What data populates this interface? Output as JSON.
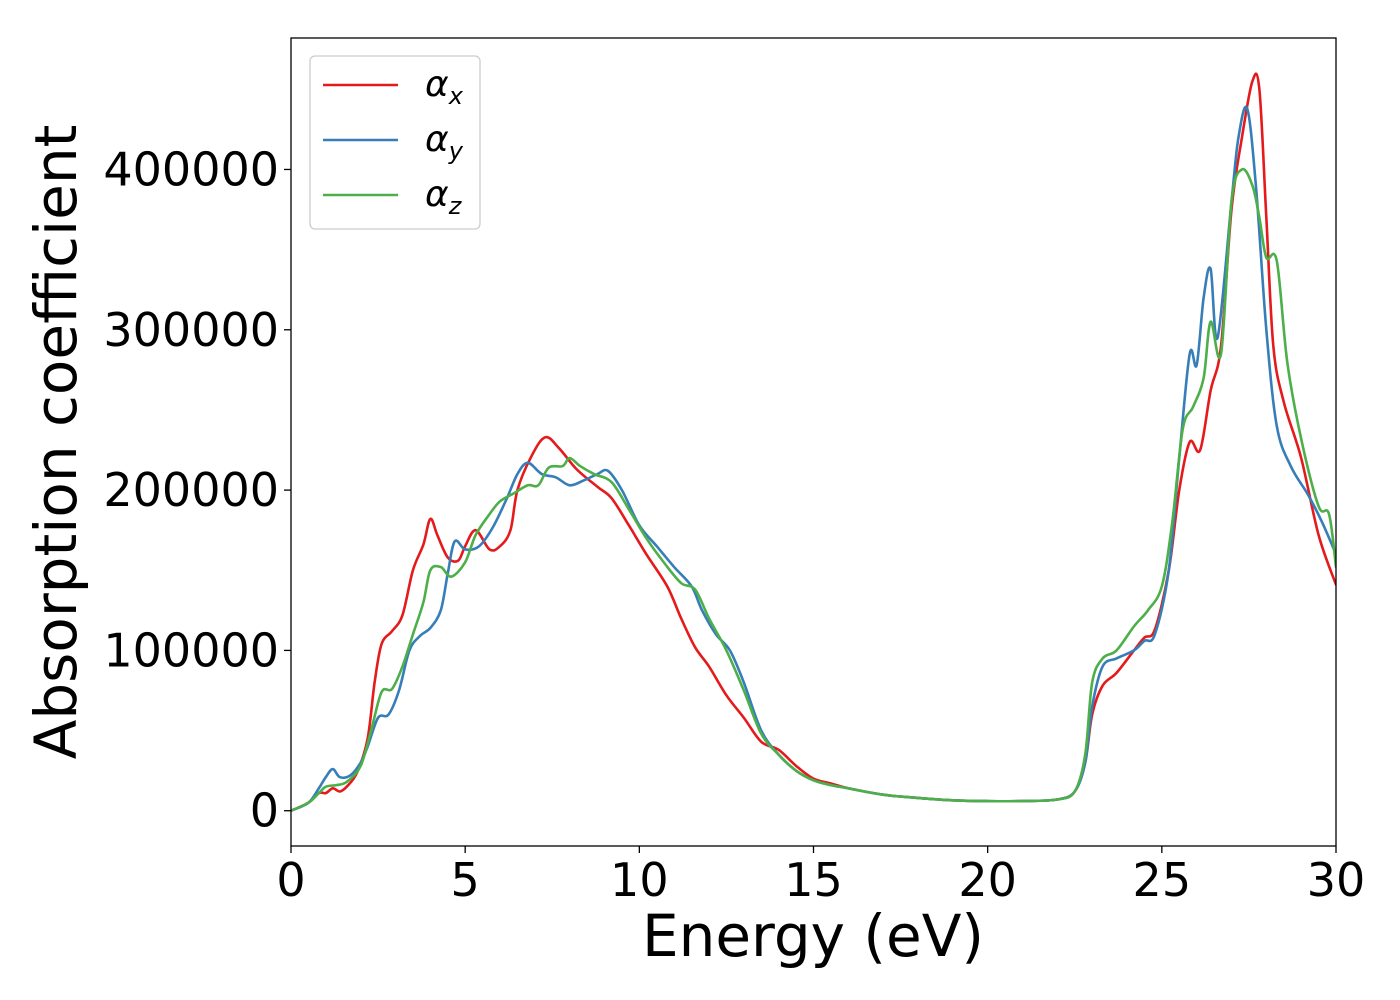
{
  "chart_data": {
    "type": "line",
    "title": "",
    "xlabel": "Energy (eV)",
    "ylabel": "Absorption coefficient",
    "xlim": [
      0,
      30
    ],
    "ylim": [
      -22000,
      482000
    ],
    "xticks": [
      0,
      5,
      10,
      15,
      20,
      25,
      30
    ],
    "yticks": [
      0,
      100000,
      200000,
      300000,
      400000
    ],
    "xtick_labels": [
      "0",
      "5",
      "10",
      "15",
      "20",
      "25",
      "30"
    ],
    "ytick_labels": [
      "0",
      "100000",
      "200000",
      "300000",
      "400000"
    ],
    "grid": false,
    "legend_position": "top-left",
    "series": [
      {
        "name": "αx",
        "symbol": "α",
        "subscript": "x",
        "color": "#e41a1c",
        "points": [
          [
            0,
            0
          ],
          [
            0.5,
            5000
          ],
          [
            0.8,
            11000
          ],
          [
            1.0,
            11000
          ],
          [
            1.2,
            14000
          ],
          [
            1.4,
            12000
          ],
          [
            1.6,
            15000
          ],
          [
            1.9,
            24000
          ],
          [
            2.2,
            45000
          ],
          [
            2.4,
            80000
          ],
          [
            2.6,
            104000
          ],
          [
            2.9,
            112000
          ],
          [
            3.2,
            122000
          ],
          [
            3.5,
            150000
          ],
          [
            3.8,
            166000
          ],
          [
            4.0,
            182000
          ],
          [
            4.2,
            172000
          ],
          [
            4.5,
            158000
          ],
          [
            4.8,
            156000
          ],
          [
            5.0,
            165000
          ],
          [
            5.3,
            175000
          ],
          [
            5.7,
            163000
          ],
          [
            6.0,
            165000
          ],
          [
            6.3,
            175000
          ],
          [
            6.5,
            200000
          ],
          [
            6.9,
            221000
          ],
          [
            7.3,
            233000
          ],
          [
            7.7,
            226000
          ],
          [
            8.2,
            213000
          ],
          [
            8.8,
            202000
          ],
          [
            9.2,
            195000
          ],
          [
            9.7,
            178000
          ],
          [
            10.2,
            160000
          ],
          [
            10.8,
            140000
          ],
          [
            11.2,
            120000
          ],
          [
            11.6,
            102000
          ],
          [
            12.0,
            90000
          ],
          [
            12.5,
            72000
          ],
          [
            13.0,
            58000
          ],
          [
            13.5,
            43000
          ],
          [
            14.0,
            38000
          ],
          [
            14.5,
            28000
          ],
          [
            15.0,
            20000
          ],
          [
            15.5,
            17000
          ],
          [
            16.0,
            14000
          ],
          [
            17.0,
            10000
          ],
          [
            18.0,
            8000
          ],
          [
            19.0,
            6500
          ],
          [
            20.0,
            6000
          ],
          [
            21.0,
            6000
          ],
          [
            22.0,
            7000
          ],
          [
            22.5,
            12000
          ],
          [
            22.8,
            30000
          ],
          [
            23.0,
            60000
          ],
          [
            23.3,
            78000
          ],
          [
            23.7,
            86000
          ],
          [
            24.2,
            100000
          ],
          [
            24.5,
            108000
          ],
          [
            24.8,
            113000
          ],
          [
            25.2,
            150000
          ],
          [
            25.5,
            200000
          ],
          [
            25.8,
            230000
          ],
          [
            26.1,
            225000
          ],
          [
            26.4,
            262000
          ],
          [
            26.7,
            290000
          ],
          [
            27.0,
            375000
          ],
          [
            27.3,
            420000
          ],
          [
            27.6,
            455000
          ],
          [
            27.8,
            450000
          ],
          [
            28.0,
            370000
          ],
          [
            28.2,
            290000
          ],
          [
            28.5,
            255000
          ],
          [
            29.0,
            220000
          ],
          [
            29.5,
            172000
          ],
          [
            30.0,
            141000
          ]
        ]
      },
      {
        "name": "αy",
        "symbol": "α",
        "subscript": "y",
        "color": "#377eb8",
        "points": [
          [
            0,
            0
          ],
          [
            0.5,
            5000
          ],
          [
            0.8,
            14000
          ],
          [
            1.0,
            21000
          ],
          [
            1.2,
            26000
          ],
          [
            1.4,
            21000
          ],
          [
            1.7,
            22000
          ],
          [
            2.0,
            30000
          ],
          [
            2.2,
            40000
          ],
          [
            2.5,
            58000
          ],
          [
            2.8,
            60000
          ],
          [
            3.1,
            75000
          ],
          [
            3.4,
            100000
          ],
          [
            3.7,
            109000
          ],
          [
            4.0,
            114000
          ],
          [
            4.3,
            125000
          ],
          [
            4.5,
            148000
          ],
          [
            4.7,
            168000
          ],
          [
            5.0,
            163000
          ],
          [
            5.4,
            165000
          ],
          [
            5.8,
            177000
          ],
          [
            6.2,
            195000
          ],
          [
            6.5,
            210000
          ],
          [
            6.8,
            217000
          ],
          [
            7.2,
            210000
          ],
          [
            7.6,
            208000
          ],
          [
            8.0,
            203000
          ],
          [
            8.4,
            206000
          ],
          [
            8.8,
            210000
          ],
          [
            9.1,
            212000
          ],
          [
            9.5,
            200000
          ],
          [
            10.0,
            178000
          ],
          [
            10.5,
            165000
          ],
          [
            11.0,
            152000
          ],
          [
            11.5,
            140000
          ],
          [
            11.8,
            125000
          ],
          [
            12.2,
            110000
          ],
          [
            12.6,
            100000
          ],
          [
            13.0,
            80000
          ],
          [
            13.5,
            50000
          ],
          [
            14.0,
            35000
          ],
          [
            14.5,
            25000
          ],
          [
            15.0,
            19000
          ],
          [
            15.5,
            16000
          ],
          [
            16.0,
            14000
          ],
          [
            17.0,
            10000
          ],
          [
            18.0,
            8000
          ],
          [
            19.0,
            6500
          ],
          [
            20.0,
            6000
          ],
          [
            21.0,
            6000
          ],
          [
            22.0,
            7000
          ],
          [
            22.5,
            12000
          ],
          [
            22.8,
            30000
          ],
          [
            23.0,
            65000
          ],
          [
            23.3,
            90000
          ],
          [
            23.7,
            95000
          ],
          [
            24.2,
            100000
          ],
          [
            24.5,
            106000
          ],
          [
            24.8,
            110000
          ],
          [
            25.2,
            150000
          ],
          [
            25.5,
            220000
          ],
          [
            25.8,
            285000
          ],
          [
            26.0,
            278000
          ],
          [
            26.2,
            320000
          ],
          [
            26.4,
            338000
          ],
          [
            26.6,
            295000
          ],
          [
            27.0,
            380000
          ],
          [
            27.2,
            420000
          ],
          [
            27.45,
            438000
          ],
          [
            27.7,
            390000
          ],
          [
            28.0,
            300000
          ],
          [
            28.3,
            240000
          ],
          [
            28.7,
            215000
          ],
          [
            29.2,
            197000
          ],
          [
            29.6,
            180000
          ],
          [
            30.0,
            160000
          ]
        ]
      },
      {
        "name": "αz",
        "symbol": "α",
        "subscript": "z",
        "color": "#4daf4a",
        "points": [
          [
            0,
            0
          ],
          [
            0.5,
            5000
          ],
          [
            0.8,
            11000
          ],
          [
            1.0,
            15000
          ],
          [
            1.3,
            16000
          ],
          [
            1.6,
            18000
          ],
          [
            2.0,
            28000
          ],
          [
            2.3,
            50000
          ],
          [
            2.6,
            74000
          ],
          [
            2.9,
            76000
          ],
          [
            3.2,
            90000
          ],
          [
            3.5,
            110000
          ],
          [
            3.8,
            130000
          ],
          [
            4.0,
            150000
          ],
          [
            4.3,
            152000
          ],
          [
            4.6,
            146000
          ],
          [
            5.0,
            155000
          ],
          [
            5.3,
            172000
          ],
          [
            5.7,
            185000
          ],
          [
            6.0,
            193000
          ],
          [
            6.4,
            198000
          ],
          [
            6.8,
            203000
          ],
          [
            7.1,
            203000
          ],
          [
            7.4,
            214000
          ],
          [
            7.8,
            215000
          ],
          [
            8.0,
            220000
          ],
          [
            8.3,
            215000
          ],
          [
            8.7,
            210000
          ],
          [
            9.2,
            205000
          ],
          [
            9.7,
            188000
          ],
          [
            10.2,
            170000
          ],
          [
            10.7,
            155000
          ],
          [
            11.2,
            142000
          ],
          [
            11.6,
            138000
          ],
          [
            12.0,
            120000
          ],
          [
            12.5,
            100000
          ],
          [
            13.0,
            75000
          ],
          [
            13.5,
            48000
          ],
          [
            14.0,
            35000
          ],
          [
            14.5,
            25000
          ],
          [
            15.0,
            19000
          ],
          [
            15.5,
            16000
          ],
          [
            16.0,
            14000
          ],
          [
            17.0,
            10000
          ],
          [
            18.0,
            8000
          ],
          [
            19.0,
            6500
          ],
          [
            20.0,
            6000
          ],
          [
            21.0,
            6000
          ],
          [
            22.0,
            7000
          ],
          [
            22.5,
            12000
          ],
          [
            22.8,
            35000
          ],
          [
            23.0,
            80000
          ],
          [
            23.3,
            95000
          ],
          [
            23.7,
            100000
          ],
          [
            24.2,
            115000
          ],
          [
            24.6,
            125000
          ],
          [
            25.0,
            140000
          ],
          [
            25.3,
            180000
          ],
          [
            25.6,
            238000
          ],
          [
            25.9,
            252000
          ],
          [
            26.2,
            270000
          ],
          [
            26.4,
            305000
          ],
          [
            26.7,
            285000
          ],
          [
            27.0,
            380000
          ],
          [
            27.3,
            400000
          ],
          [
            27.6,
            390000
          ],
          [
            27.8,
            370000
          ],
          [
            28.0,
            345000
          ],
          [
            28.3,
            343000
          ],
          [
            28.6,
            280000
          ],
          [
            29.0,
            232000
          ],
          [
            29.5,
            190000
          ],
          [
            29.8,
            185000
          ],
          [
            30.0,
            152000
          ]
        ]
      }
    ]
  }
}
